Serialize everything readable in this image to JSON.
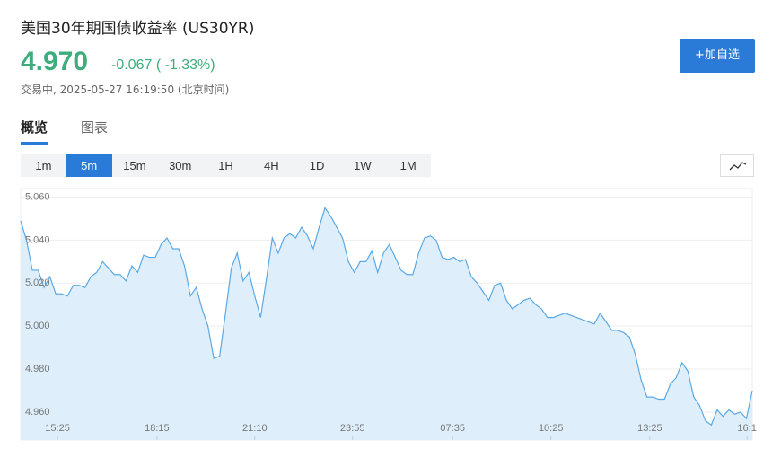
{
  "header": {
    "title": "美国30年期国债收益率 (US30YR)",
    "price": "4.970",
    "change": "-0.067 ( -1.33%)",
    "status": "交易中, 2025-05-27 16:19:50 (北京时间)",
    "button": "+加自选"
  },
  "tabs": [
    "概览",
    "图表"
  ],
  "intervals": [
    "1m",
    "5m",
    "15m",
    "30m",
    "1H",
    "4H",
    "1D",
    "1W",
    "1M"
  ],
  "chart_data": {
    "type": "area",
    "color": "#5aa9e6",
    "area_color": "#deeefb",
    "grid": true,
    "values": [
      5.049,
      5.04,
      5.026,
      5.026,
      5.018,
      5.023,
      5.015,
      5.015,
      5.014,
      5.019,
      5.019,
      5.018,
      5.023,
      5.025,
      5.03,
      5.027,
      5.024,
      5.024,
      5.021,
      5.028,
      5.025,
      5.033,
      5.032,
      5.032,
      5.038,
      5.041,
      5.036,
      5.036,
      5.028,
      5.014,
      5.018,
      5.008,
      5.0,
      4.985,
      4.986,
      5.006,
      5.027,
      5.034,
      5.021,
      5.025,
      5.014,
      5.004,
      5.022,
      5.041,
      5.034,
      5.041,
      5.043,
      5.041,
      5.046,
      5.042,
      5.036,
      5.046,
      5.055,
      5.051,
      5.046,
      5.041,
      5.03,
      5.025,
      5.03,
      5.03,
      5.035,
      5.025,
      5.034,
      5.038,
      5.032,
      5.026,
      5.024,
      5.024,
      5.034,
      5.041,
      5.042,
      5.04,
      5.032,
      5.031,
      5.032,
      5.03,
      5.031,
      5.023,
      5.02,
      5.016,
      5.012,
      5.019,
      5.02,
      5.012,
      5.008,
      5.01,
      5.012,
      5.013,
      5.01,
      5.008,
      5.004,
      5.004,
      5.005,
      5.006,
      5.005,
      5.004,
      5.003,
      5.002,
      5.001,
      5.006,
      5.002,
      4.998,
      4.998,
      4.997,
      4.995,
      4.987,
      4.975,
      4.967,
      4.967,
      4.966,
      4.966,
      4.973,
      4.976,
      4.983,
      4.979,
      4.967,
      4.963,
      4.956,
      4.954,
      4.961,
      4.958,
      4.961,
      4.959,
      4.96,
      4.957,
      4.97
    ],
    "xlim": [
      0,
      125
    ],
    "xticks": [
      {
        "value": 6.3,
        "label": "15:25"
      },
      {
        "value": 23.3,
        "label": "18:15"
      },
      {
        "value": 40.0,
        "label": "21:10"
      },
      {
        "value": 56.7,
        "label": "23:55"
      },
      {
        "value": 73.8,
        "label": "07:35"
      },
      {
        "value": 90.6,
        "label": "10:25"
      },
      {
        "value": 107.5,
        "label": "13:25"
      },
      {
        "value": 124.1,
        "label": "16:1"
      }
    ],
    "ylim": [
      4.947,
      5.064
    ],
    "yticks": [
      {
        "value": 4.96,
        "label": "4.960"
      },
      {
        "value": 4.98,
        "label": "4.980"
      },
      {
        "value": 5.0,
        "label": "5.000"
      },
      {
        "value": 5.02,
        "label": "5.020"
      },
      {
        "value": 5.04,
        "label": "5.040"
      },
      {
        "value": 5.06,
        "label": "5.060"
      }
    ]
  }
}
